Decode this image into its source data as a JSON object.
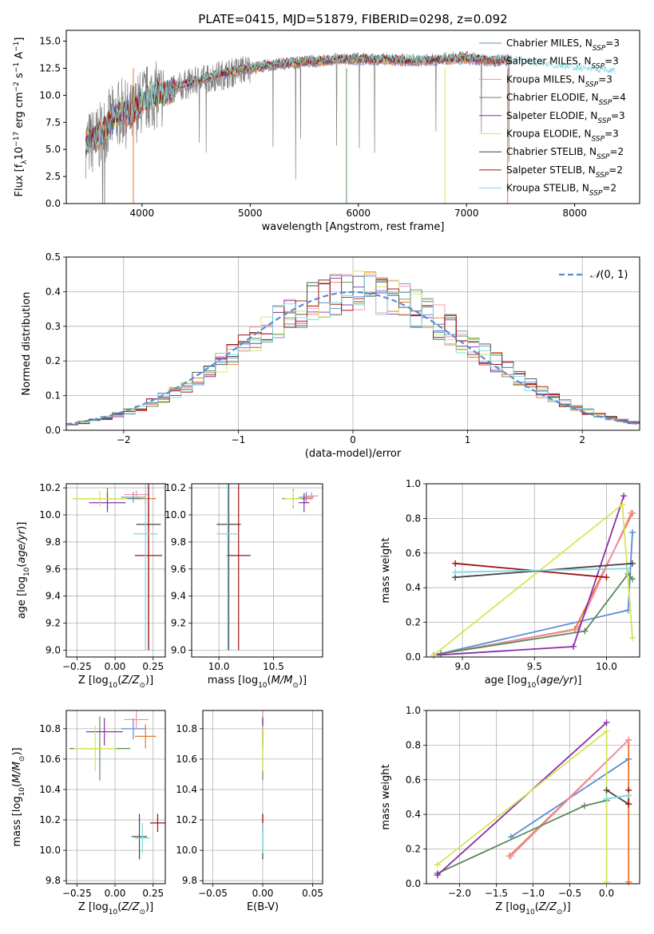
{
  "colors": {
    "Chabrier MILES": "#5b8bd6",
    "Salpeter MILES": "#e8732c",
    "Kroupa MILES": "#f28fa8",
    "Chabrier ELODIE": "#5a8a5c",
    "Salpeter ELODIE": "#8b2fa8",
    "Kroupa ELODIE": "#d4e555",
    "Chabrier STELIB": "#444444",
    "Salpeter STELIB": "#a01010",
    "Kroupa STELIB": "#7fd8e0"
  },
  "chart_data": [
    {
      "id": "spectrum",
      "type": "line",
      "title": "PLATE=0415, MJD=51879, FIBERID=0298, z=0.092",
      "xlabel": "wavelength [Angstrom, rest frame]",
      "ylabel": "Flux [f_λ 10^-17 erg cm^-2 s^-1 A^-1]",
      "xlim": [
        3300,
        8600
      ],
      "ylim": [
        0,
        16
      ],
      "xticks": [
        "4000",
        "5000",
        "6000",
        "7000",
        "8000"
      ],
      "yticks": [
        "0.0",
        "2.5",
        "5.0",
        "7.5",
        "10.0",
        "12.5",
        "15.0"
      ],
      "grid": false,
      "legend_position": "right",
      "legend": [
        "Chabrier MILES, N_SSP=3",
        "Salpeter MILES, N_SSP=3",
        "Kroupa MILES, N_SSP=3",
        "Chabrier ELODIE, N_SSP=4",
        "Salpeter ELODIE, N_SSP=3",
        "Kroupa ELODIE, N_SSP=3",
        "Chabrier STELIB, N_SSP=2",
        "Salpeter STELIB, N_SSP=2",
        "Kroupa STELIB, N_SSP=2"
      ],
      "legend_series": [
        "Chabrier MILES",
        "Salpeter MILES",
        "Kroupa MILES",
        "Chabrier ELODIE",
        "Salpeter ELODIE",
        "Kroupa ELODIE",
        "Chabrier STELIB",
        "Salpeter STELIB",
        "Kroupa STELIB"
      ],
      "data_series": {
        "name": "data",
        "color": "#808080",
        "x": [
          3500,
          3600,
          3700,
          3800,
          3900,
          4000,
          4100,
          4200,
          4300,
          4400,
          4500,
          4600,
          4700,
          4800,
          4900,
          5000,
          5200,
          5400,
          5600,
          5800,
          6000,
          6200,
          6400,
          6600,
          6800,
          7000,
          7200,
          7400
        ],
        "y": [
          5.5,
          6.0,
          7.5,
          8.5,
          8.0,
          9.5,
          10.0,
          10.0,
          10.5,
          11.0,
          11.3,
          11.5,
          11.8,
          12.0,
          12.3,
          12.5,
          12.8,
          13.0,
          13.2,
          13.3,
          13.4,
          13.3,
          13.3,
          13.2,
          13.4,
          13.5,
          13.2,
          13.3
        ]
      },
      "model_x": [
        3500,
        3600,
        3700,
        3800,
        3900,
        4000,
        4100,
        4200,
        4300,
        4400,
        4500,
        4600,
        4700,
        4800,
        4900,
        5000,
        5200,
        5400,
        5600,
        5800,
        6000,
        6200,
        6400,
        6600,
        6800,
        7000,
        7200,
        7400,
        7600,
        7800,
        8000,
        8200,
        8400
      ],
      "model_y": [
        5.6,
        6.2,
        7.4,
        8.6,
        8.2,
        9.4,
        10.0,
        10.1,
        10.6,
        11.0,
        11.3,
        11.6,
        11.9,
        12.1,
        12.3,
        12.5,
        12.8,
        13.0,
        13.1,
        13.3,
        13.3,
        13.3,
        13.2,
        13.2,
        13.3,
        13.4,
        13.2,
        13.2,
        12.9,
        12.6,
        12.4,
        12.2,
        12.0
      ]
    },
    {
      "id": "residuals",
      "type": "histogram",
      "xlabel": "(data-model)/error",
      "ylabel": "Normed distribution",
      "xlim": [
        -2.5,
        2.5
      ],
      "ylim": [
        0,
        0.5
      ],
      "xticks": [
        "−2",
        "−1",
        "0",
        "1",
        "2"
      ],
      "yticks": [
        "0.0",
        "0.1",
        "0.2",
        "0.3",
        "0.4",
        "0.5"
      ],
      "grid": true,
      "legend_position": "top-right",
      "legend": [
        "N(0,1)"
      ],
      "bin_edges_range": [
        -2.5,
        2.5
      ],
      "n_bins": 50,
      "reference_curve": "normal(0,1)"
    },
    {
      "id": "age-vs-Z",
      "type": "errorbar",
      "xlabel": "Z [log10(Z/Z⊙)]",
      "ylabel": "age  [log10(age/yr)]",
      "xlim": [
        -0.32,
        0.33
      ],
      "ylim": [
        8.95,
        10.23
      ],
      "xticks": [
        "−0.25",
        "0.00",
        "0.25"
      ],
      "yticks": [
        "9.0",
        "9.2",
        "9.4",
        "9.6",
        "9.8",
        "10.0",
        "10.2"
      ],
      "grid": true,
      "points": [
        {
          "series": "Chabrier MILES",
          "x": 0.12,
          "y": 10.13,
          "xerr": 0.08,
          "yerr": 0.04
        },
        {
          "series": "Salpeter MILES",
          "x": 0.2,
          "y": 10.12,
          "xerr": 0.07,
          "yerr": 0.04
        },
        {
          "series": "Kroupa MILES",
          "x": 0.14,
          "y": 10.15,
          "xerr": 0.08,
          "yerr": 0.03
        },
        {
          "series": "Chabrier ELODIE",
          "x": -0.05,
          "y": 10.12,
          "xerr": 0.22,
          "yerr": 0.08
        },
        {
          "series": "Salpeter ELODIE",
          "x": -0.05,
          "y": 10.09,
          "xerr": 0.12,
          "yerr": 0.07
        },
        {
          "series": "Kroupa ELODIE",
          "x": -0.1,
          "y": 10.12,
          "xerr": 0.18,
          "yerr": 0.06
        },
        {
          "series": "Chabrier STELIB",
          "x": 0.22,
          "y": 9.93,
          "xerr": 0.08,
          "yerr": 0.93
        },
        {
          "series": "Salpeter STELIB",
          "x": 0.22,
          "y": 9.7,
          "xerr": 0.09,
          "yerr": 0.7
        },
        {
          "series": "Kroupa STELIB",
          "x": 0.2,
          "y": 9.86,
          "xerr": 0.08,
          "yerr": 0.86
        }
      ]
    },
    {
      "id": "age-vs-mass",
      "type": "errorbar",
      "xlabel": "mass [log10(M/M⊙)]",
      "ylabel": "",
      "xlim": [
        9.75,
        10.95
      ],
      "ylim": [
        8.95,
        10.23
      ],
      "xticks": [
        "10.0",
        "10.5"
      ],
      "yticks": [
        "9.0",
        "9.2",
        "9.4",
        "9.6",
        "9.8",
        "10.0",
        "10.2"
      ],
      "grid": true,
      "points": [
        {
          "series": "Chabrier MILES",
          "x": 10.8,
          "y": 10.13,
          "xerr": 0.07,
          "yerr": 0.04
        },
        {
          "series": "Salpeter MILES",
          "x": 10.78,
          "y": 10.12,
          "xerr": 0.08,
          "yerr": 0.04
        },
        {
          "series": "Kroupa MILES",
          "x": 10.85,
          "y": 10.14,
          "xerr": 0.06,
          "yerr": 0.03
        },
        {
          "series": "Chabrier ELODIE",
          "x": 10.68,
          "y": 10.12,
          "xerr": 0.1,
          "yerr": 0.07
        },
        {
          "series": "Salpeter ELODIE",
          "x": 10.78,
          "y": 10.09,
          "xerr": 0.05,
          "yerr": 0.07
        },
        {
          "series": "Kroupa ELODIE",
          "x": 10.68,
          "y": 10.12,
          "xerr": 0.08,
          "yerr": 0.06
        },
        {
          "series": "Chabrier STELIB",
          "x": 10.09,
          "y": 9.93,
          "xerr": 0.11,
          "yerr": 0.93
        },
        {
          "series": "Salpeter STELIB",
          "x": 10.18,
          "y": 9.7,
          "xerr": 0.11,
          "yerr": 0.7
        },
        {
          "series": "Kroupa STELIB",
          "x": 10.08,
          "y": 9.86,
          "xerr": 0.1,
          "yerr": 0.86
        }
      ]
    },
    {
      "id": "weight-vs-age",
      "type": "line",
      "xlabel": "age  [log10(age/yr)]",
      "ylabel": "mass weight",
      "xlim": [
        8.75,
        10.23
      ],
      "ylim": [
        0,
        1
      ],
      "xticks": [
        "9.0",
        "9.5",
        "10.0"
      ],
      "yticks": [
        "0.0",
        "0.2",
        "0.4",
        "0.6",
        "0.8",
        "1.0"
      ],
      "grid": true,
      "series": [
        {
          "series": "Chabrier MILES",
          "x": [
            8.8,
            10.15,
            10.18
          ],
          "y": [
            0.01,
            0.27,
            0.72
          ]
        },
        {
          "series": "Salpeter MILES",
          "x": [
            8.8,
            9.78,
            10.18
          ],
          "y": [
            0.01,
            0.16,
            0.83
          ]
        },
        {
          "series": "Kroupa MILES",
          "x": [
            8.8,
            9.8,
            10.17
          ],
          "y": [
            0.01,
            0.16,
            0.83
          ]
        },
        {
          "series": "Chabrier ELODIE",
          "x": [
            8.85,
            9.85,
            10.15,
            10.18
          ],
          "y": [
            0.02,
            0.15,
            0.48,
            0.45
          ]
        },
        {
          "series": "Salpeter ELODIE",
          "x": [
            8.8,
            9.77,
            10.12
          ],
          "y": [
            0.01,
            0.06,
            0.93
          ]
        },
        {
          "series": "Kroupa ELODIE",
          "x": [
            8.8,
            10.11,
            10.18
          ],
          "y": [
            0.01,
            0.88,
            0.11
          ]
        },
        {
          "series": "Chabrier STELIB",
          "x": [
            8.95,
            10.18
          ],
          "y": [
            0.46,
            0.54
          ]
        },
        {
          "series": "Salpeter STELIB",
          "x": [
            8.95,
            10.0
          ],
          "y": [
            0.54,
            0.46
          ]
        },
        {
          "series": "Kroupa STELIB",
          "x": [
            8.95,
            10.14
          ],
          "y": [
            0.49,
            0.51
          ]
        }
      ]
    },
    {
      "id": "mass-vs-Z",
      "type": "errorbar",
      "xlabel": "Z [log10(Z/Z⊙)]",
      "ylabel": "mass [log10(M/M⊙)]",
      "xlim": [
        -0.32,
        0.33
      ],
      "ylim": [
        9.78,
        10.92
      ],
      "xticks": [
        "−0.25",
        "0.00",
        "0.25"
      ],
      "yticks": [
        "9.8",
        "10.0",
        "10.2",
        "10.4",
        "10.6",
        "10.8"
      ],
      "grid": true,
      "points": [
        {
          "series": "Chabrier MILES",
          "x": 0.12,
          "y": 10.8,
          "xerr": 0.08,
          "yerr": 0.07
        },
        {
          "series": "Salpeter MILES",
          "x": 0.2,
          "y": 10.75,
          "xerr": 0.07,
          "yerr": 0.08
        },
        {
          "series": "Kroupa MILES",
          "x": 0.14,
          "y": 10.86,
          "xerr": 0.08,
          "yerr": 0.06
        },
        {
          "series": "Chabrier ELODIE",
          "x": -0.1,
          "y": 10.67,
          "xerr": 0.2,
          "yerr": 0.21
        },
        {
          "series": "Salpeter ELODIE",
          "x": -0.07,
          "y": 10.78,
          "xerr": 0.12,
          "yerr": 0.09
        },
        {
          "series": "Kroupa ELODIE",
          "x": -0.13,
          "y": 10.67,
          "xerr": 0.14,
          "yerr": 0.15
        },
        {
          "series": "Chabrier STELIB",
          "x": 0.16,
          "y": 10.09,
          "xerr": 0.05,
          "yerr": 0.15
        },
        {
          "series": "Salpeter STELIB",
          "x": 0.28,
          "y": 10.18,
          "xerr": 0.05,
          "yerr": 0.06
        },
        {
          "series": "Kroupa STELIB",
          "x": 0.18,
          "y": 10.08,
          "xerr": 0.05,
          "yerr": 0.1
        }
      ]
    },
    {
      "id": "mass-vs-EBV",
      "type": "errorbar",
      "xlabel": "E(B-V)",
      "ylabel": "",
      "xlim": [
        -0.06,
        0.06
      ],
      "ylim": [
        9.78,
        10.92
      ],
      "xticks": [
        "−0.05",
        "0.00",
        "0.05"
      ],
      "yticks": [
        "9.8",
        "10.0",
        "10.2",
        "10.4",
        "10.6",
        "10.8"
      ],
      "grid": true,
      "points": [
        {
          "series": "Chabrier MILES",
          "x": 0.0,
          "y": 10.8,
          "xerr": 0,
          "yerr": 0.07
        },
        {
          "series": "Salpeter MILES",
          "x": 0.0,
          "y": 10.75,
          "xerr": 0,
          "yerr": 0.08
        },
        {
          "series": "Kroupa MILES",
          "x": 0.0,
          "y": 10.86,
          "xerr": 0,
          "yerr": 0.06
        },
        {
          "series": "Chabrier ELODIE",
          "x": 0.0,
          "y": 10.67,
          "xerr": 0,
          "yerr": 0.21
        },
        {
          "series": "Salpeter ELODIE",
          "x": 0.0,
          "y": 10.78,
          "xerr": 0,
          "yerr": 0.09
        },
        {
          "series": "Kroupa ELODIE",
          "x": 0.0,
          "y": 10.67,
          "xerr": 0,
          "yerr": 0.15
        },
        {
          "series": "Chabrier STELIB",
          "x": 0.0,
          "y": 10.09,
          "xerr": 0,
          "yerr": 0.15
        },
        {
          "series": "Salpeter STELIB",
          "x": 0.0,
          "y": 10.18,
          "xerr": 0,
          "yerr": 0.06
        },
        {
          "series": "Kroupa STELIB",
          "x": 0.0,
          "y": 10.08,
          "xerr": 0,
          "yerr": 0.1
        }
      ]
    },
    {
      "id": "weight-vs-Z",
      "type": "line",
      "xlabel": "Z [log10(Z/Z⊙)]",
      "ylabel": "mass weight",
      "xlim": [
        -2.45,
        0.45
      ],
      "ylim": [
        0,
        1
      ],
      "xticks": [
        "−2.0",
        "−1.5",
        "−1.0",
        "−0.5",
        "0.0"
      ],
      "yticks": [
        "0.0",
        "0.2",
        "0.4",
        "0.6",
        "0.8",
        "1.0"
      ],
      "grid": true,
      "series": [
        {
          "series": "Chabrier MILES",
          "x": [
            -1.3,
            0.3
          ],
          "y": [
            0.27,
            0.72
          ]
        },
        {
          "series": "Salpeter MILES",
          "x": [
            -1.32,
            0.3,
            0.3
          ],
          "y": [
            0.16,
            0.83,
            0.01
          ]
        },
        {
          "series": "Kroupa MILES",
          "x": [
            -1.3,
            0.3
          ],
          "y": [
            0.16,
            0.83
          ]
        },
        {
          "series": "Chabrier ELODIE",
          "x": [
            -2.3,
            -0.3,
            0.0
          ],
          "y": [
            0.06,
            0.45,
            0.48
          ]
        },
        {
          "series": "Salpeter ELODIE",
          "x": [
            -2.3,
            0.0
          ],
          "y": [
            0.05,
            0.93
          ]
        },
        {
          "series": "Kroupa ELODIE",
          "x": [
            -2.3,
            0.0,
            0.0
          ],
          "y": [
            0.11,
            0.88,
            0.01
          ]
        },
        {
          "series": "Chabrier STELIB",
          "x": [
            0.0,
            0.3
          ],
          "y": [
            0.54,
            0.46
          ]
        },
        {
          "series": "Salpeter STELIB",
          "x": [
            0.3,
            0.3
          ],
          "y": [
            0.54,
            0.46
          ]
        },
        {
          "series": "Kroupa STELIB",
          "x": [
            0.0,
            0.3
          ],
          "y": [
            0.49,
            0.51
          ]
        }
      ]
    }
  ]
}
